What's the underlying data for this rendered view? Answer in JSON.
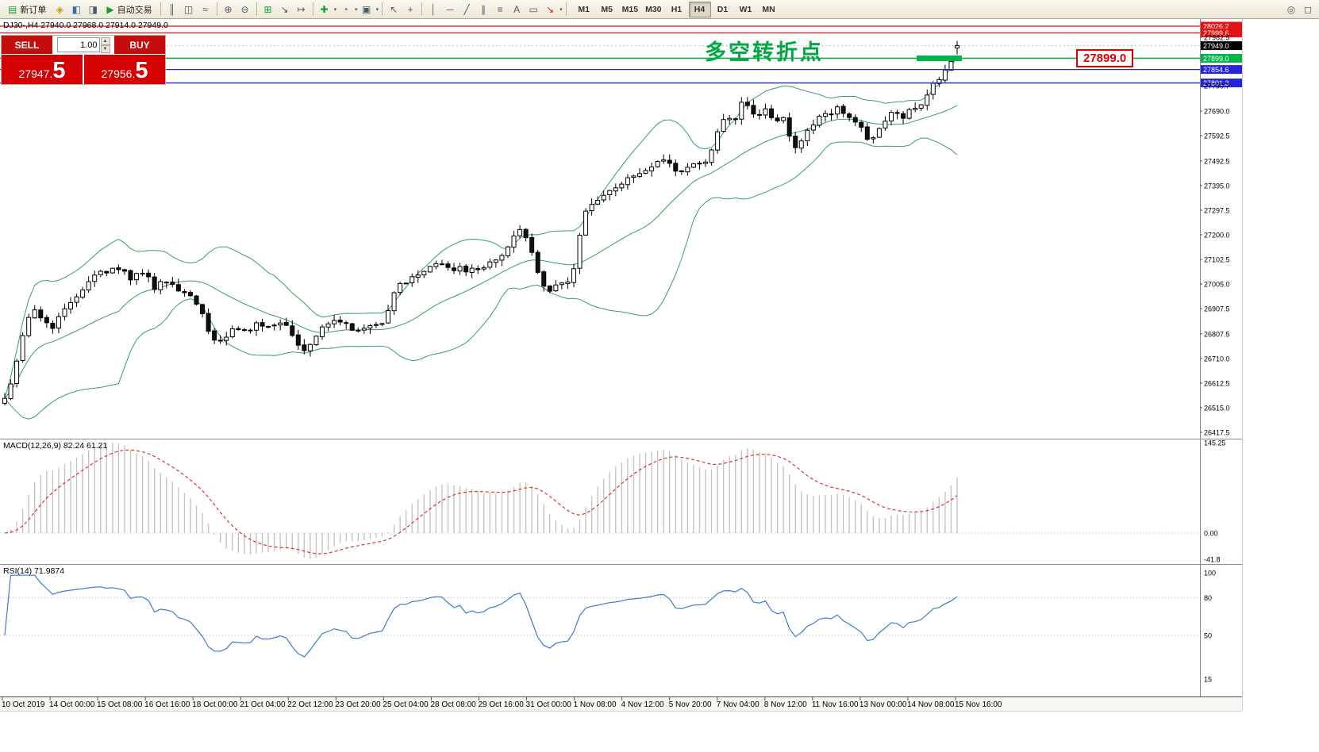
{
  "toolbar": {
    "new_order_label": "新订单",
    "auto_trading_label": "自动交易",
    "timeframes": [
      "M1",
      "M5",
      "M15",
      "M30",
      "H1",
      "H4",
      "D1",
      "W1",
      "MN"
    ],
    "active_timeframe": "H4"
  },
  "icons": {
    "new_order": "▤",
    "lightning": "◈",
    "users": "◧",
    "speaker": "◨",
    "auto_trading_play": "▶",
    "bar_chart": "║",
    "candlestick_chart": "◫",
    "line_chart": "≈",
    "zoom_in": "⊕",
    "zoom_out": "⊖",
    "tile_windows": "⊞",
    "auto_scroll": "↘",
    "chart_shift": "↦",
    "add_indicator": "✚",
    "periods": "◔",
    "templates": "▣",
    "cursor": "↖",
    "crosshair": "+",
    "vertical_line": "│",
    "horizontal_line": "─",
    "trendline": "╱",
    "channel": "∥",
    "fibonacci": "≡",
    "text_tool": "A",
    "label_tool": "▭",
    "arrow_tool": "↘",
    "dropdown": "▾",
    "magnifier": "◎",
    "new_window": "◻"
  },
  "trade_panel": {
    "sell_label": "SELL",
    "buy_label": "BUY",
    "volume": "1.00",
    "sell_price_main": "27947.",
    "sell_price_big": "5",
    "buy_price_main": "27956.",
    "buy_price_big": "5"
  },
  "chart": {
    "info_line": "DJ30-,H4  27940.0 27968.0 27914.0 27949.0",
    "annotation": "多空转折点",
    "price_flag": "27899.0",
    "colors": {
      "up_candle": "#ffffff",
      "down_candle": "#111111",
      "candle_border": "#000000",
      "bollinger": "#35a05a",
      "level_red": "#e01414",
      "level_green": "#00b44a",
      "level_blue": "#2424d8",
      "current_label_bg": "#000000",
      "macd_hist": "#c4c4c4",
      "macd_signal": "#e02020",
      "rsi_line": "#3b7bd4",
      "annotation_green": "#00a843"
    }
  },
  "indicators": {
    "macd_label": "MACD(12,26,9) 82.24 61.21",
    "rsi_label": "RSI(14) 71.9874"
  },
  "chart_data": {
    "type": "candlestick",
    "symbol": "DJ30-",
    "timeframe": "H4",
    "ohlc_current": {
      "open": 27940.0,
      "high": 27968.0,
      "low": 27914.0,
      "close": 27949.0
    },
    "candles": 160,
    "noise_seed": 11,
    "price_axis": {
      "min": 26417.5,
      "max": 28026.2,
      "plain_ticks": [
        27982.5,
        27790.7,
        27690.0,
        27592.5,
        27492.5,
        27395.0,
        27297.5,
        27200.0,
        27102.5,
        27005.0,
        26907.5,
        26807.5,
        26710.0,
        26612.5,
        26515.0,
        26417.5
      ]
    },
    "levels": [
      {
        "price": 28026.2,
        "type": "red"
      },
      {
        "price": 27999.6,
        "type": "red"
      },
      {
        "price": 27949.0,
        "type": "current"
      },
      {
        "price": 27899.0,
        "type": "green",
        "zone": [
          1155,
          1212
        ]
      },
      {
        "price": 27854.6,
        "type": "blue"
      },
      {
        "price": 27801.3,
        "type": "blue"
      }
    ],
    "bollinger": {
      "period": 20,
      "deviation": 2
    },
    "macd": {
      "fast": 12,
      "slow": 26,
      "signal": 9,
      "scale_max": 145.25,
      "scale": [
        {
          "label": "145.25",
          "value": 145.25
        },
        {
          "label": "0.00",
          "value": 0
        },
        {
          "label": "-41.8",
          "value": -41.8
        }
      ]
    },
    "rsi": {
      "period": 14,
      "scale": [
        {
          "label": "100",
          "value": 100
        },
        {
          "label": "80",
          "value": 80
        },
        {
          "label": "50",
          "value": 50
        },
        {
          "label": "15",
          "value": 15
        }
      ]
    },
    "close_anchors": [
      [
        5,
        26540
      ],
      [
        15,
        26630
      ],
      [
        25,
        26750
      ],
      [
        35,
        26870
      ],
      [
        45,
        26900
      ],
      [
        55,
        26860
      ],
      [
        65,
        26830
      ],
      [
        75,
        26890
      ],
      [
        85,
        26920
      ],
      [
        95,
        26940
      ],
      [
        105,
        26990
      ],
      [
        115,
        27030
      ],
      [
        125,
        27070
      ],
      [
        135,
        27040
      ],
      [
        145,
        27070
      ],
      [
        155,
        27060
      ],
      [
        165,
        27020
      ],
      [
        175,
        27050
      ],
      [
        185,
        27040
      ],
      [
        195,
        26990
      ],
      [
        205,
        27030
      ],
      [
        215,
        27000
      ],
      [
        225,
        26980
      ],
      [
        235,
        26960
      ],
      [
        245,
        26940
      ],
      [
        255,
        26880
      ],
      [
        265,
        26790
      ],
      [
        275,
        26780
      ],
      [
        285,
        26800
      ],
      [
        295,
        26830
      ],
      [
        305,
        26810
      ],
      [
        315,
        26830
      ],
      [
        325,
        26850
      ],
      [
        335,
        26840
      ],
      [
        345,
        26850
      ],
      [
        355,
        26860
      ],
      [
        365,
        26820
      ],
      [
        375,
        26770
      ],
      [
        385,
        26740
      ],
      [
        395,
        26790
      ],
      [
        405,
        26830
      ],
      [
        415,
        26850
      ],
      [
        425,
        26860
      ],
      [
        435,
        26850
      ],
      [
        445,
        26820
      ],
      [
        455,
        26830
      ],
      [
        465,
        26830
      ],
      [
        475,
        26840
      ],
      [
        485,
        26850
      ],
      [
        492,
        26920
      ],
      [
        500,
        27000
      ],
      [
        510,
        27010
      ],
      [
        520,
        27030
      ],
      [
        530,
        27050
      ],
      [
        540,
        27070
      ],
      [
        550,
        27090
      ],
      [
        560,
        27070
      ],
      [
        570,
        27060
      ],
      [
        580,
        27070
      ],
      [
        590,
        27060
      ],
      [
        600,
        27060
      ],
      [
        610,
        27080
      ],
      [
        620,
        27090
      ],
      [
        630,
        27110
      ],
      [
        640,
        27150
      ],
      [
        650,
        27200
      ],
      [
        658,
        27220
      ],
      [
        666,
        27180
      ],
      [
        674,
        27100
      ],
      [
        682,
        27010
      ],
      [
        690,
        26960
      ],
      [
        698,
        26990
      ],
      [
        706,
        27010
      ],
      [
        714,
        27000
      ],
      [
        722,
        27050
      ],
      [
        730,
        27180
      ],
      [
        736,
        27290
      ],
      [
        745,
        27310
      ],
      [
        755,
        27340
      ],
      [
        765,
        27360
      ],
      [
        775,
        27390
      ],
      [
        785,
        27410
      ],
      [
        795,
        27430
      ],
      [
        805,
        27440
      ],
      [
        815,
        27460
      ],
      [
        825,
        27490
      ],
      [
        835,
        27500
      ],
      [
        845,
        27480
      ],
      [
        855,
        27440
      ],
      [
        865,
        27460
      ],
      [
        875,
        27490
      ],
      [
        885,
        27480
      ],
      [
        895,
        27520
      ],
      [
        905,
        27610
      ],
      [
        915,
        27680
      ],
      [
        925,
        27650
      ],
      [
        935,
        27730
      ],
      [
        945,
        27700
      ],
      [
        955,
        27660
      ],
      [
        965,
        27700
      ],
      [
        975,
        27640
      ],
      [
        985,
        27680
      ],
      [
        995,
        27590
      ],
      [
        1005,
        27540
      ],
      [
        1015,
        27600
      ],
      [
        1025,
        27640
      ],
      [
        1035,
        27690
      ],
      [
        1045,
        27670
      ],
      [
        1055,
        27700
      ],
      [
        1065,
        27680
      ],
      [
        1075,
        27660
      ],
      [
        1085,
        27620
      ],
      [
        1095,
        27570
      ],
      [
        1105,
        27600
      ],
      [
        1115,
        27650
      ],
      [
        1125,
        27690
      ],
      [
        1135,
        27660
      ],
      [
        1145,
        27690
      ],
      [
        1155,
        27700
      ],
      [
        1165,
        27740
      ],
      [
        1175,
        27790
      ],
      [
        1185,
        27830
      ],
      [
        1195,
        27880
      ],
      [
        1202,
        27910
      ],
      [
        1210,
        27949
      ]
    ],
    "time_labels": [
      "10 Oct 2019",
      "14 Oct 00:00",
      "15 Oct 08:00",
      "16 Oct 16:00",
      "18 Oct 00:00",
      "21 Oct 04:00",
      "22 Oct 12:00",
      "23 Oct 20:00",
      "25 Oct 04:00",
      "28 Oct 08:00",
      "29 Oct 16:00",
      "31 Oct 00:00",
      "1 Nov 08:00",
      "4 Nov 12:00",
      "5 Nov 20:00",
      "7 Nov 04:00",
      "8 Nov 12:00",
      "11 Nov 16:00",
      "13 Nov 00:00",
      "14 Nov 08:00",
      "15 Nov 16:00"
    ]
  }
}
